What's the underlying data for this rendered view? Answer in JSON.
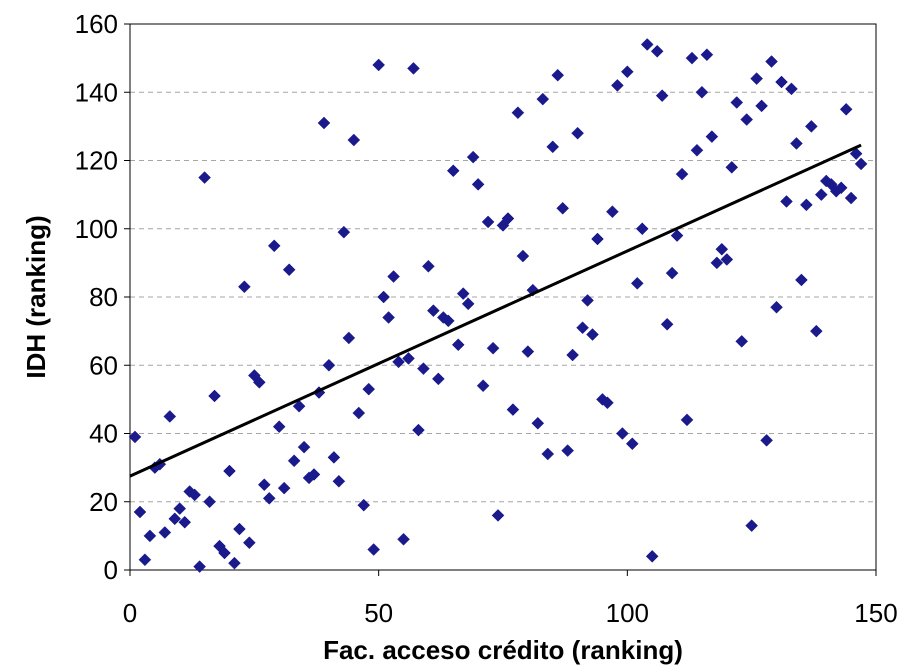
{
  "chart_data": {
    "type": "scatter",
    "title": "",
    "xlabel": "Fac. acceso crédito (ranking)",
    "ylabel": "IDH (ranking)",
    "xlim": [
      0,
      150
    ],
    "ylim": [
      0,
      160
    ],
    "x_ticks": [
      0,
      50,
      100,
      150
    ],
    "y_ticks": [
      0,
      20,
      40,
      60,
      80,
      100,
      120,
      140,
      160
    ],
    "grid": "horizontal dashed",
    "legend": "none",
    "colors": {
      "marker": "#1a1a8c",
      "trend": "#000000",
      "grid": "#a6a6a6"
    },
    "series": [
      {
        "marker": "diamond",
        "x": [
          1,
          2,
          3,
          4,
          5,
          6,
          7,
          8,
          9,
          10,
          11,
          12,
          13,
          14,
          15,
          16,
          17,
          18,
          19,
          20,
          21,
          22,
          23,
          24,
          25,
          26,
          27,
          28,
          29,
          30,
          31,
          32,
          33,
          34,
          35,
          36,
          37,
          38,
          39,
          40,
          41,
          42,
          43,
          44,
          45,
          46,
          47,
          48,
          49,
          50,
          51,
          52,
          53,
          54,
          55,
          56,
          57,
          58,
          59,
          60,
          61,
          62,
          63,
          64,
          65,
          66,
          67,
          68,
          69,
          70,
          71,
          72,
          73,
          74,
          75,
          76,
          77,
          78,
          79,
          80,
          81,
          82,
          83,
          84,
          85,
          86,
          87,
          88,
          89,
          90,
          91,
          92,
          93,
          94,
          95,
          96,
          97,
          98,
          99,
          100,
          101,
          102,
          103,
          104,
          105,
          106,
          107,
          108,
          109,
          110,
          111,
          112,
          113,
          114,
          115,
          116,
          117,
          118,
          119,
          120,
          121,
          122,
          123,
          124,
          125,
          126,
          127,
          128,
          129,
          130,
          131,
          132,
          133,
          134,
          135,
          136,
          137,
          138,
          139,
          140,
          141,
          142,
          143,
          144,
          145,
          146,
          147
        ],
        "y": [
          39,
          17,
          3,
          10,
          30,
          31,
          11,
          45,
          15,
          18,
          14,
          23,
          22,
          1,
          115,
          20,
          51,
          7,
          5,
          29,
          2,
          12,
          83,
          8,
          57,
          55,
          25,
          21,
          95,
          42,
          24,
          88,
          32,
          48,
          36,
          27,
          28,
          52,
          131,
          60,
          33,
          26,
          99,
          68,
          126,
          46,
          19,
          53,
          6,
          148,
          80,
          74,
          86,
          61,
          9,
          62,
          147,
          41,
          59,
          89,
          76,
          56,
          74,
          73,
          117,
          66,
          81,
          78,
          121,
          113,
          54,
          102,
          65,
          16,
          101,
          103,
          47,
          134,
          92,
          64,
          82,
          43,
          138,
          34,
          124,
          145,
          106,
          35,
          63,
          128,
          71,
          79,
          69,
          97,
          50,
          49,
          105,
          142,
          40,
          146,
          37,
          84,
          100,
          154,
          4,
          152,
          139,
          72,
          87,
          98,
          116,
          44,
          150,
          123,
          140,
          151,
          127,
          90,
          94,
          91,
          118,
          137,
          67,
          132,
          13,
          144,
          136,
          38,
          149,
          77,
          143,
          108,
          141,
          125,
          85,
          107,
          130,
          70,
          110,
          114,
          113,
          111,
          112,
          135,
          109,
          122,
          119
        ]
      }
    ],
    "trendline": {
      "type": "linear",
      "x": [
        0,
        147
      ],
      "y": [
        27.5,
        124.5
      ]
    }
  }
}
